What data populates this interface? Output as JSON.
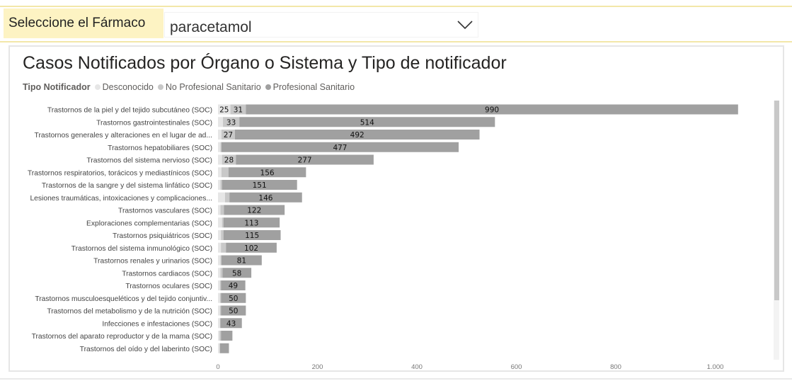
{
  "slicer": {
    "label": "Seleccione el Fármaco",
    "selected": "paracetamol",
    "chevron_icon": "chevron-down-icon"
  },
  "colors": {
    "desconocido": "#e6e6e6",
    "no_profesional": "#c8c8c8",
    "profesional": "#a0a0a0",
    "slicer_bg": "#fdf3c3",
    "accent_line": "#f3e7a9"
  },
  "chart_data": {
    "type": "bar",
    "orientation": "horizontal",
    "stacked": true,
    "title": "Casos Notificados por Órgano o Sistema y Tipo de notificador",
    "legend_title": "Tipo Notificador",
    "legend_position": "top-left",
    "xlim": [
      0,
      1100
    ],
    "x_ticks": [
      "0",
      "200",
      "400",
      "600",
      "800",
      "1.000"
    ],
    "x_tick_values": [
      0,
      200,
      400,
      600,
      800,
      1000
    ],
    "grid": false,
    "categories": [
      "Trastornos de la piel y del tejido subcutáneo (SOC)",
      "Trastornos gastrointestinales (SOC)",
      "Trastornos generales y alteraciones en el lugar de ad...",
      "Trastornos hepatobiliares (SOC)",
      "Trastornos del sistema nervioso (SOC)",
      "Trastornos respiratorios, torácicos y mediastínicos (SOC)",
      "Trastornos de la sangre y del sistema linfático (SOC)",
      "Lesiones traumáticas, intoxicaciones y complicaciones...",
      "Trastornos vasculares (SOC)",
      "Exploraciones complementarias (SOC)",
      "Trastornos psiquiátricos (SOC)",
      "Trastornos del sistema inmunológico (SOC)",
      "Trastornos renales y urinarios (SOC)",
      "Trastornos cardiacos (SOC)",
      "Trastornos oculares (SOC)",
      "Trastornos musculoesqueléticos y del tejido conjuntiv...",
      "Trastornos del metabolismo y de la nutrición (SOC)",
      "Infecciones e infestaciones (SOC)",
      "Trastornos del aparato reproductor y de la mama (SOC)",
      "Trastornos del oído y del laberinto (SOC)"
    ],
    "series": [
      {
        "name": "Desconocido",
        "color": "#e6e6e6",
        "values": [
          25,
          10,
          7,
          5,
          8,
          7,
          5,
          14,
          5,
          8,
          6,
          6,
          5,
          5,
          4,
          4,
          4,
          4,
          3,
          3
        ],
        "labels": [
          "25",
          "",
          "",
          "",
          "",
          "",
          "",
          "",
          "",
          "",
          "",
          "",
          "",
          "",
          "",
          "",
          "",
          "",
          "",
          ""
        ]
      },
      {
        "name": "No Profesional Sanitario",
        "color": "#c8c8c8",
        "values": [
          31,
          33,
          27,
          2,
          28,
          14,
          3,
          9,
          7,
          3,
          5,
          10,
          2,
          4,
          2,
          2,
          2,
          1,
          3,
          1
        ],
        "labels": [
          "31",
          "33",
          "27",
          "",
          "28",
          "",
          "",
          "",
          "",
          "",
          "",
          "",
          "",
          "",
          "",
          "",
          "",
          "",
          "",
          ""
        ]
      },
      {
        "name": "Profesional Sanitario",
        "color": "#a0a0a0",
        "values": [
          990,
          514,
          492,
          477,
          277,
          156,
          151,
          146,
          122,
          113,
          115,
          102,
          81,
          58,
          49,
          50,
          50,
          43,
          23,
          18
        ],
        "labels": [
          "990",
          "514",
          "492",
          "477",
          "277",
          "156",
          "151",
          "146",
          "122",
          "113",
          "115",
          "102",
          "81",
          "58",
          "49",
          "50",
          "50",
          "43",
          "",
          ""
        ]
      }
    ]
  }
}
